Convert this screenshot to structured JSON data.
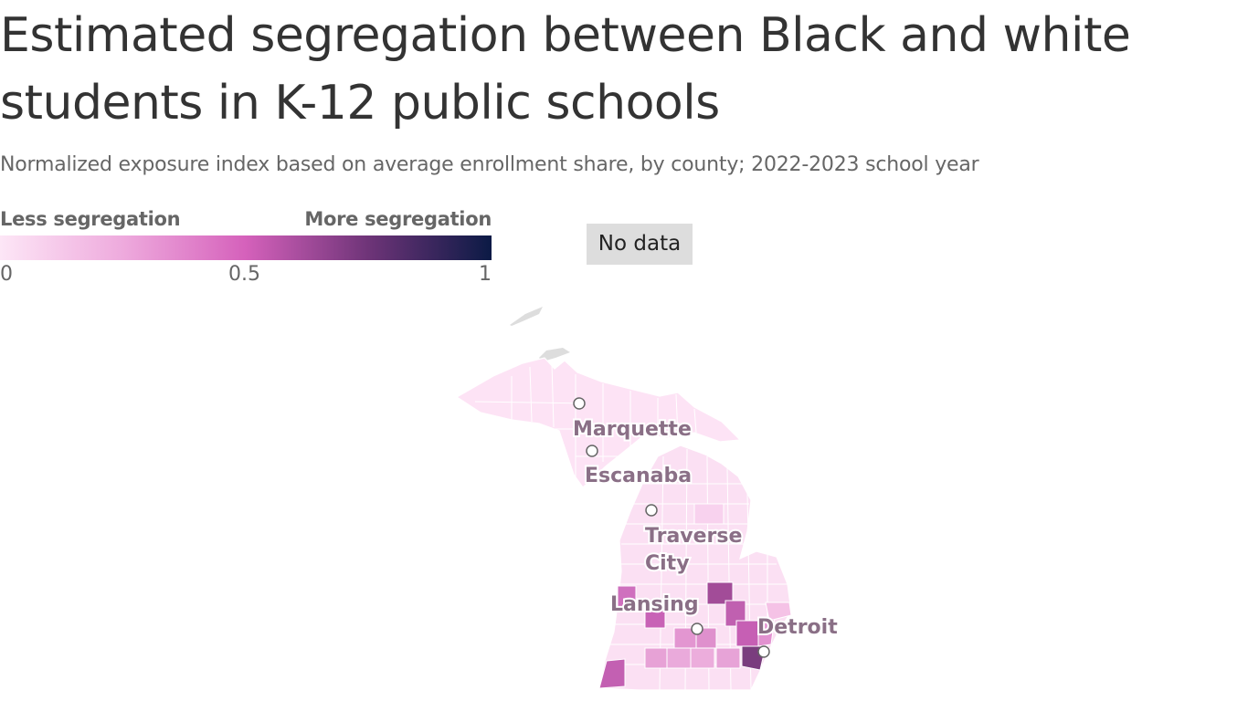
{
  "title": "Estimated segregation between Black and white students in K-12 public schools",
  "subtitle": "Normalized exposure index based on average enrollment share, by county; 2022-2023 school year",
  "legend": {
    "low_label": "Less segregation",
    "high_label": "More segregation",
    "tick_min": "0",
    "tick_mid": "0.5",
    "tick_max": "1",
    "color_min": "#fde6f6",
    "color_mid": "#d561bb",
    "color_max": "#0b1a45",
    "no_data_label": "No data",
    "no_data_color": "#dddddd"
  },
  "map": {
    "region": "Michigan",
    "cities": [
      {
        "name": "Marquette",
        "lines": [
          "Marquette"
        ]
      },
      {
        "name": "Escanaba",
        "lines": [
          "Escanaba"
        ]
      },
      {
        "name": "Traverse City",
        "lines": [
          "Traverse",
          "City"
        ]
      },
      {
        "name": "Lansing",
        "lines": [
          "Lansing"
        ]
      },
      {
        "name": "Detroit",
        "lines": [
          "Detroit"
        ]
      }
    ],
    "counties": [
      {
        "area": "upper-peninsula",
        "value": 0.05
      },
      {
        "area": "northern-lower",
        "value": 0.08
      },
      {
        "area": "lake-michigan-shore",
        "value": 0.1
      },
      {
        "area": "thumb",
        "value": 0.12
      },
      {
        "area": "berrien",
        "value": 0.6
      },
      {
        "area": "muskegon",
        "value": 0.55
      },
      {
        "area": "kent",
        "value": 0.5
      },
      {
        "area": "saginaw",
        "value": 0.62
      },
      {
        "area": "genesee",
        "value": 0.58
      },
      {
        "area": "ingham",
        "value": 0.4
      },
      {
        "area": "jackson",
        "value": 0.45
      },
      {
        "area": "washtenaw",
        "value": 0.35
      },
      {
        "area": "kalamazoo",
        "value": 0.4
      },
      {
        "area": "calhoun",
        "value": 0.35
      },
      {
        "area": "oakland",
        "value": 0.55
      },
      {
        "area": "macomb",
        "value": 0.45
      },
      {
        "area": "wayne",
        "value": 0.7
      }
    ]
  }
}
